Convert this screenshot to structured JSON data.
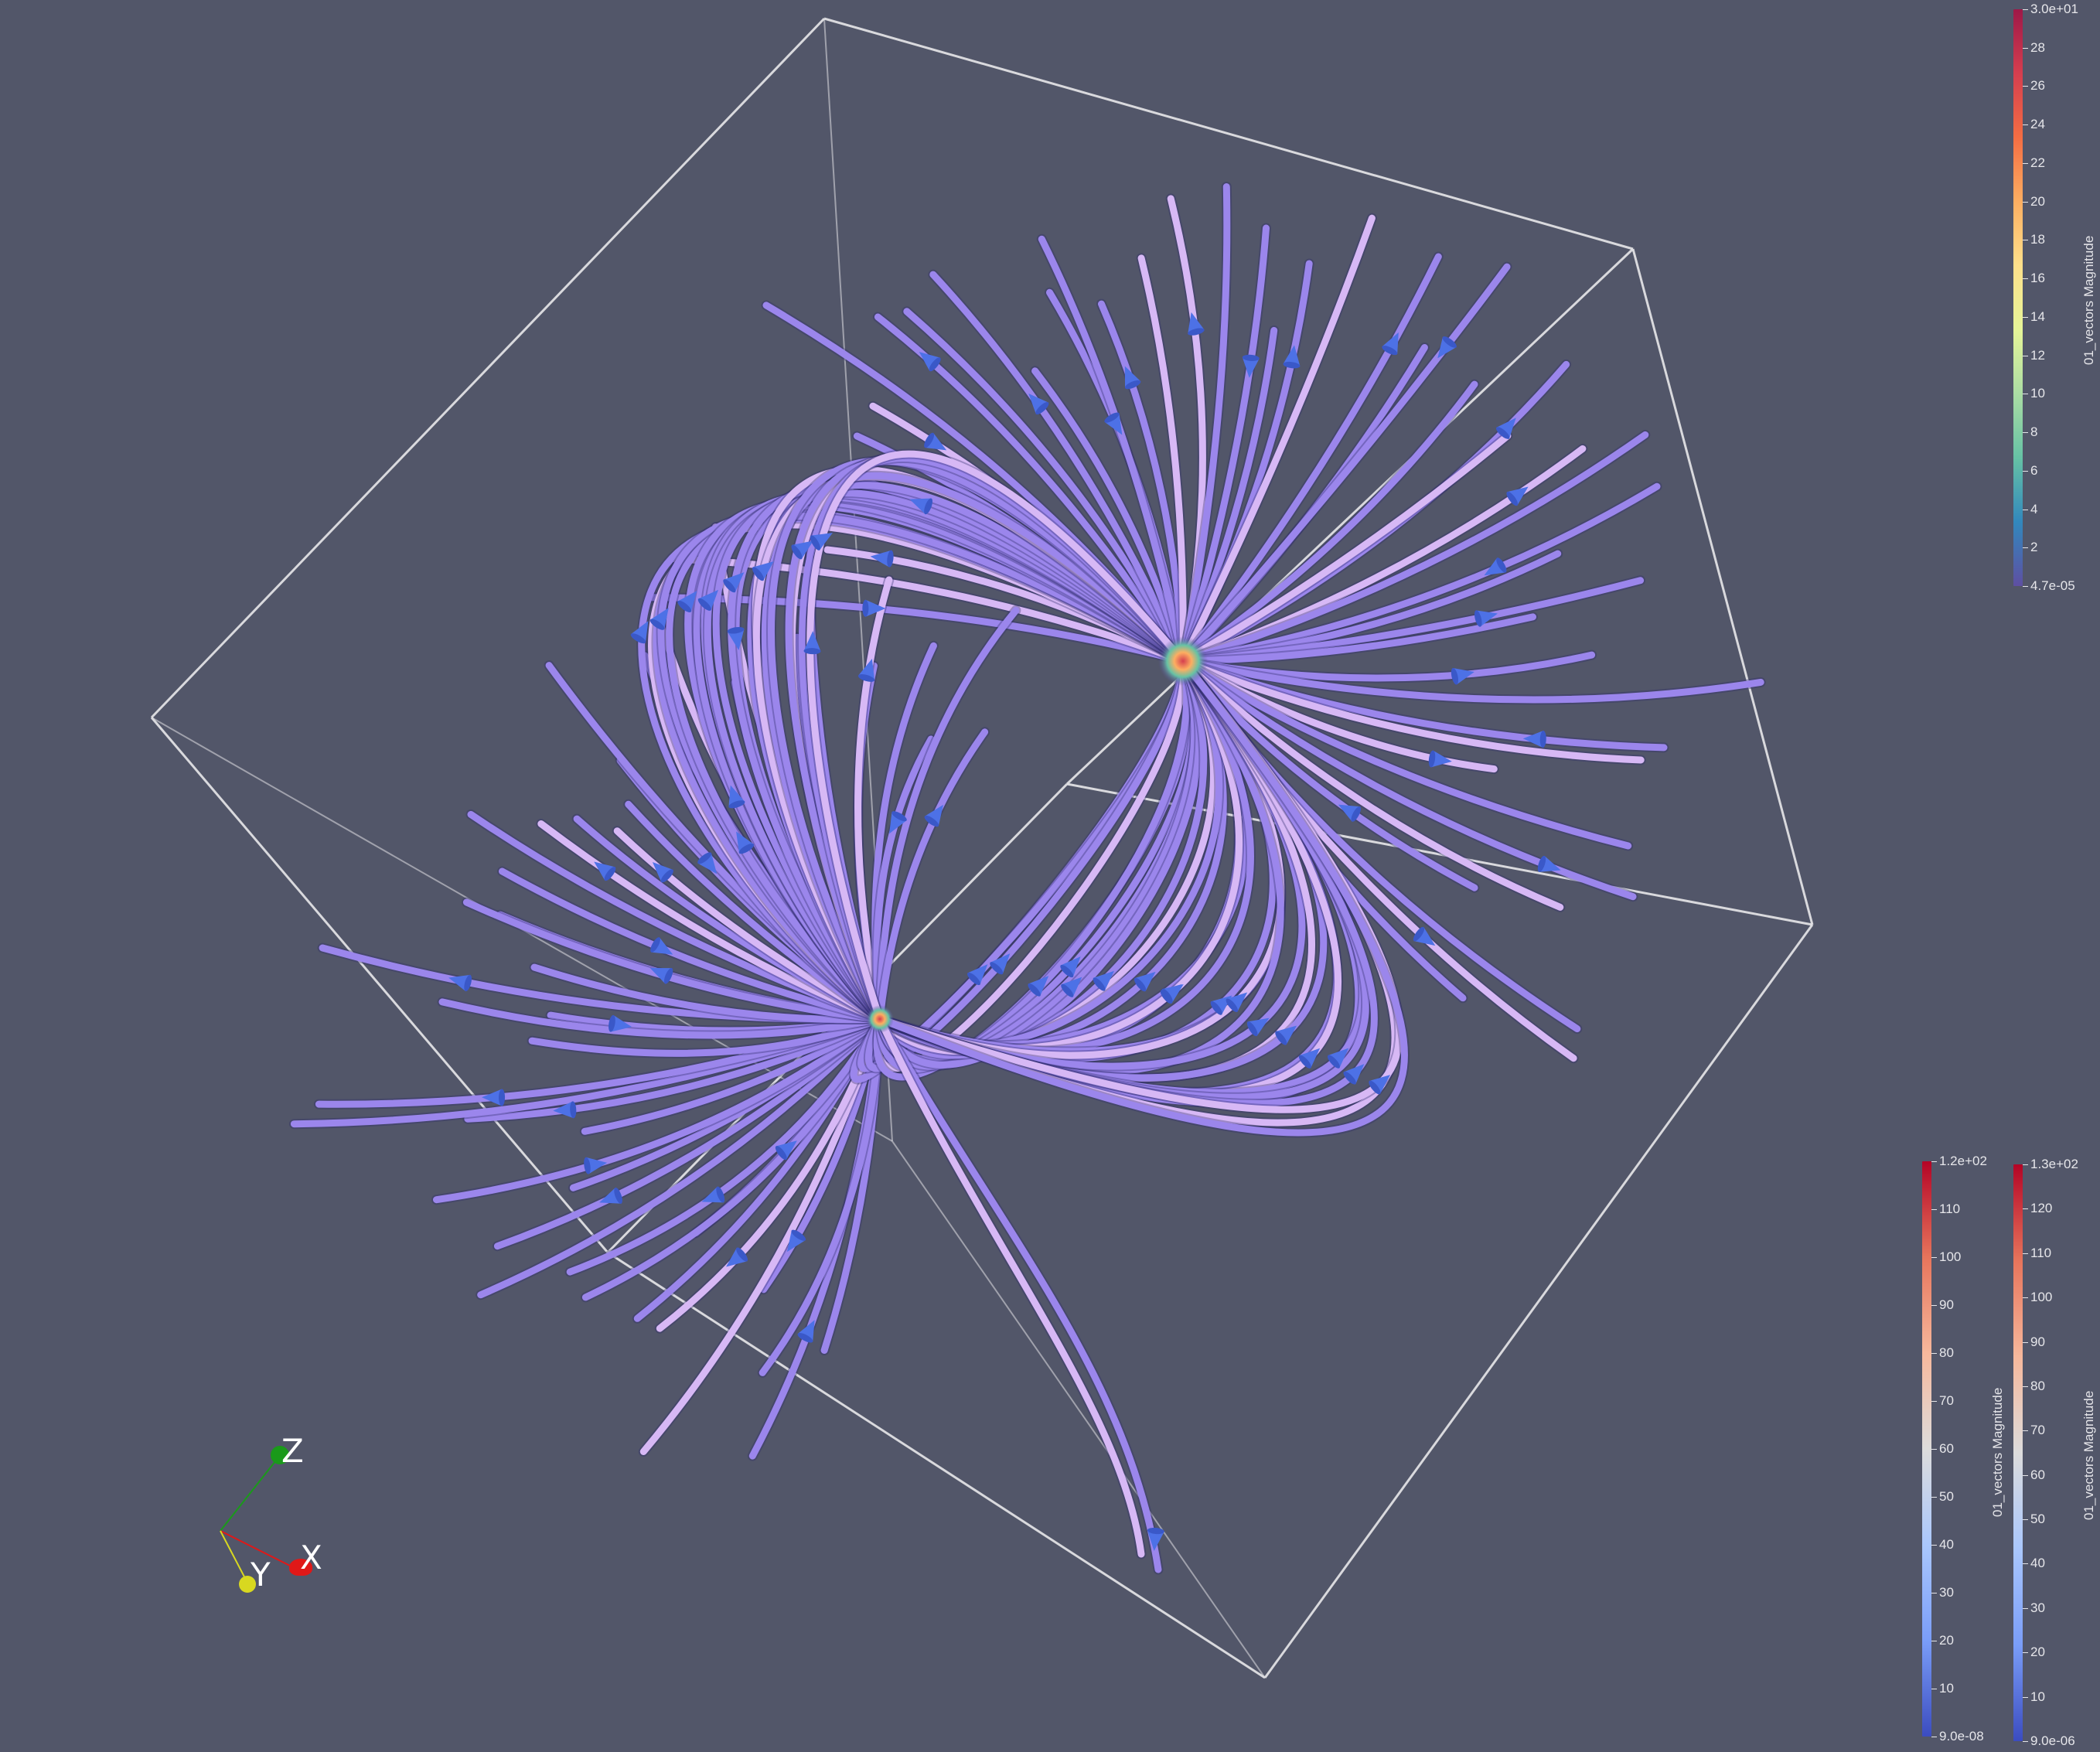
{
  "scene": {
    "background_color": "#525669",
    "streamline_color": "#9b86ec",
    "streamline_highlight": "#d7b8f5",
    "glyph_color": "#4d71e6",
    "bounding_box_color": "#e0e0e4"
  },
  "color_bars": [
    {
      "title": "01_vectors Magnitude",
      "max_label": "3.0e+01",
      "min_label": "4.7e-05",
      "ticks": [
        "28",
        "26",
        "24",
        "22",
        "20",
        "18",
        "16",
        "14",
        "12",
        "10",
        "8",
        "6",
        "4",
        "2"
      ],
      "colors": [
        "#9e1848",
        "#d53e4f",
        "#f46d43",
        "#fdae61",
        "#fee08b",
        "#e6f598",
        "#abdda4",
        "#66c2a5",
        "#3288bd",
        "#5e4fa2"
      ]
    },
    {
      "title": "01_vectors Magnitude",
      "max_label": "1.2e+02",
      "min_label": "9.0e-08",
      "ticks": [
        "110",
        "100",
        "90",
        "80",
        "70",
        "60",
        "50",
        "40",
        "30",
        "20",
        "10"
      ],
      "colors": [
        "#b40426",
        "#e7745b",
        "#f7b89c",
        "#dddcdc",
        "#aac7fd",
        "#7a9df8",
        "#3b4cc0"
      ]
    },
    {
      "title": "01_vectors Magnitude",
      "max_label": "1.3e+02",
      "min_label": "9.0e-06",
      "ticks": [
        "120",
        "110",
        "100",
        "90",
        "80",
        "70",
        "60",
        "50",
        "40",
        "30",
        "20",
        "10"
      ],
      "colors": [
        "#b40426",
        "#e7745b",
        "#f7b89c",
        "#dddcdc",
        "#aac7fd",
        "#7a9df8",
        "#3b4cc0"
      ]
    }
  ],
  "orientation_axes": {
    "x_label": "X",
    "y_label": "Y",
    "z_label": "Z",
    "x_color": "#e01818",
    "y_color": "#d8d820",
    "z_color": "#1a9a1a"
  }
}
